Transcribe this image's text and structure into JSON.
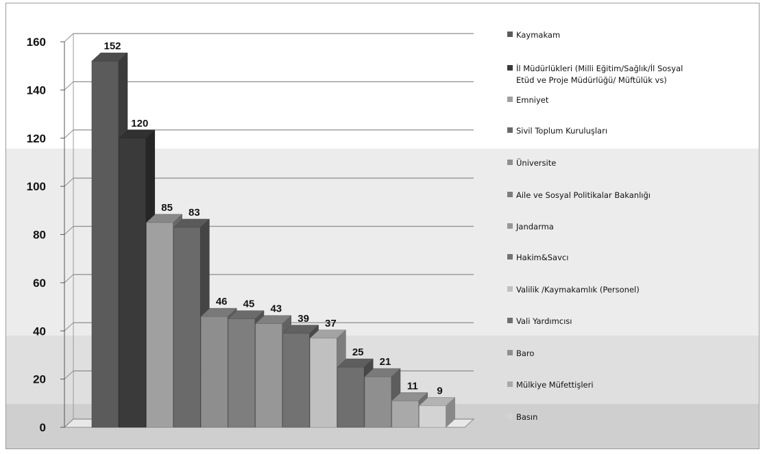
{
  "chart_data": {
    "type": "bar",
    "title": "",
    "xlabel": "",
    "ylabel": "",
    "ylim": [
      0,
      160
    ],
    "yticks": [
      "0",
      "20",
      "40",
      "60",
      "80",
      "100",
      "120",
      "140",
      "160"
    ],
    "grid": true,
    "three_d": true,
    "legend_position": "right",
    "categories": [
      "Kaymakam",
      "İl Müdürlükleri (Milli Eğitim/Sağlık/İl Sosyal Etüd ve Proje Müdürlüğü/ Müftülük vs)",
      "Emniyet",
      "Sivil Toplum Kuruluşları",
      "Üniversite",
      "Aile ve Sosyal Politikalar Bakanlığı",
      "Jandarma",
      "Hakim&Savcı",
      "Valilik /Kaymakamlık (Personel)",
      "Vali Yardımcısı",
      "Baro",
      "Mülkiye Müfettişleri",
      "Basın"
    ],
    "values": [
      152,
      120,
      85,
      83,
      46,
      45,
      43,
      39,
      37,
      25,
      21,
      11,
      9
    ],
    "value_labels": [
      "152",
      "120",
      "85",
      "83",
      "46",
      "45",
      "43",
      "39",
      "37",
      "25",
      "21",
      "11",
      "9"
    ],
    "colors": [
      "#5b5b5b",
      "#3a3a3a",
      "#a0a0a0",
      "#6a6a6a",
      "#8e8e8e",
      "#7e7e7e",
      "#979797",
      "#727272",
      "#c0c0c0",
      "#6f6f6f",
      "#8f8f8f",
      "#a9a9a9",
      "#d3d3d3"
    ],
    "legend": [
      {
        "lines": [
          "Kaymakam"
        ]
      },
      {
        "lines": [
          "İl Müdürlükleri (Milli Eğitim/Sağlık/İl Sosyal",
          "Etüd ve Proje Müdürlüğü/ Müftülük vs)"
        ]
      },
      {
        "lines": [
          "Emniyet"
        ]
      },
      {
        "lines": [
          "Sivil Toplum Kuruluşları"
        ]
      },
      {
        "lines": [
          "Üniversite"
        ]
      },
      {
        "lines": [
          "Aile ve Sosyal Politikalar Bakanlığı"
        ]
      },
      {
        "lines": [
          "Jandarma"
        ]
      },
      {
        "lines": [
          "Hakim&Savcı"
        ]
      },
      {
        "lines": [
          "Valilik /Kaymakamlık (Personel)"
        ]
      },
      {
        "lines": [
          "Vali Yardımcısı"
        ]
      },
      {
        "lines": [
          "Baro"
        ]
      },
      {
        "lines": [
          "Mülkiye Müfettişleri"
        ]
      },
      {
        "lines": [
          "Basın"
        ]
      }
    ]
  }
}
